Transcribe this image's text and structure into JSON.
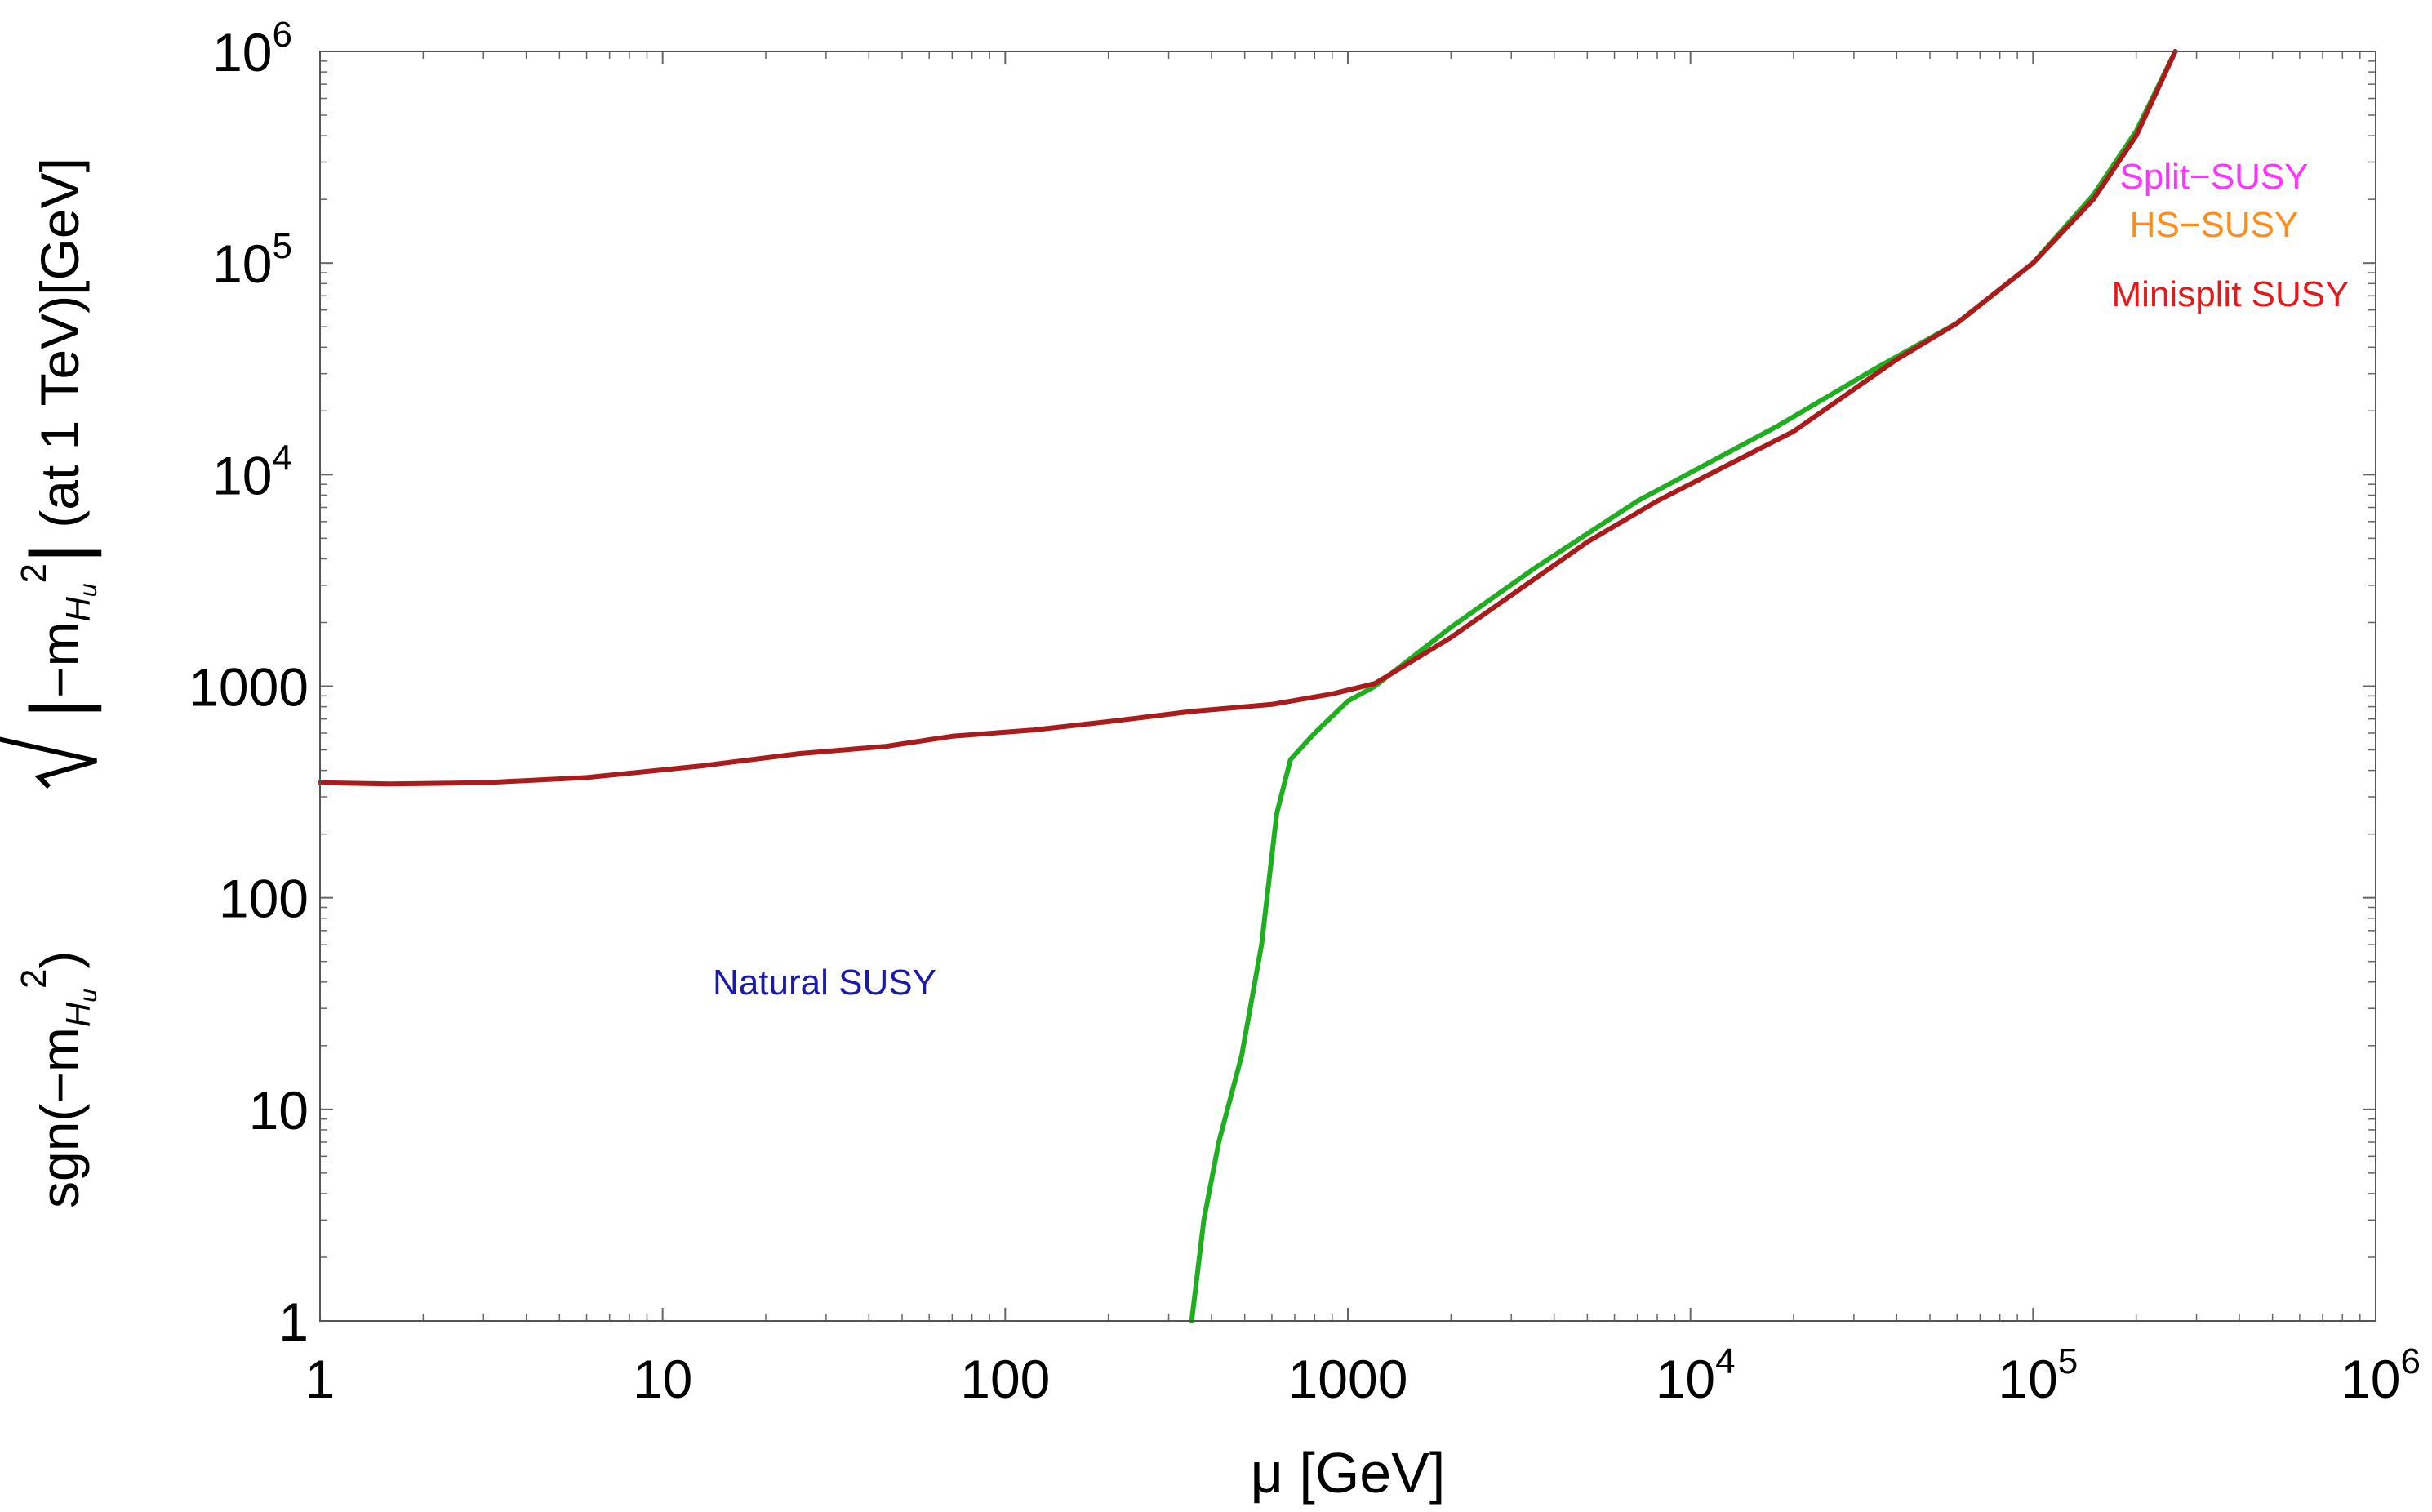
{
  "chart_data": {
    "type": "line",
    "xscale": "log",
    "yscale": "log",
    "xlim": [
      1,
      1000000
    ],
    "ylim": [
      1,
      1000000
    ],
    "xlabel": "μ [GeV]",
    "ylabel": {
      "prefix": "sgn(−m",
      "sub": "H",
      "subsub": "u",
      "sup": "2",
      "mid": ") ",
      "rad_inner_prefix": "−m",
      "suffix": " (at 1 TeV)[GeV]"
    },
    "x_ticks": [
      {
        "value": 1,
        "label": "1"
      },
      {
        "value": 10,
        "label": "10"
      },
      {
        "value": 100,
        "label": "100"
      },
      {
        "value": 1000,
        "label": "1000"
      },
      {
        "value": 10000,
        "base": "10",
        "exp": "4"
      },
      {
        "value": 100000,
        "base": "10",
        "exp": "5"
      },
      {
        "value": 1000000,
        "base": "10",
        "exp": "6"
      }
    ],
    "y_ticks": [
      {
        "value": 1,
        "label": "1"
      },
      {
        "value": 10,
        "label": "10"
      },
      {
        "value": 100,
        "label": "100"
      },
      {
        "value": 1000,
        "label": "1000"
      },
      {
        "value": 10000,
        "base": "10",
        "exp": "4"
      },
      {
        "value": 100000,
        "base": "10",
        "exp": "5"
      },
      {
        "value": 1000000,
        "base": "10",
        "exp": "6"
      }
    ],
    "series": [
      {
        "name": "green",
        "color": "#1fae1f",
        "x": [
          350,
          380,
          420,
          490,
          560,
          620,
          680,
          800,
          1000,
          1200,
          2000,
          3500,
          7000,
          18000,
          35000,
          60000,
          100000,
          150000,
          200000,
          260000
        ],
        "y": [
          1,
          3,
          7,
          18,
          60,
          250,
          450,
          600,
          850,
          1000,
          1900,
          3600,
          7500,
          17000,
          32000,
          52000,
          100000,
          210000,
          420000,
          1000000
        ]
      },
      {
        "name": "dark red",
        "color": "#aa1b1b",
        "x": [
          1,
          1.6,
          3,
          6,
          13,
          25,
          45,
          70,
          120,
          200,
          350,
          600,
          900,
          1200,
          2000,
          5000,
          8000,
          20000,
          40000,
          60000,
          100000,
          150000,
          200000,
          260000
        ],
        "y": [
          350,
          345,
          350,
          370,
          420,
          480,
          520,
          580,
          620,
          680,
          760,
          820,
          920,
          1030,
          1700,
          4800,
          7500,
          16000,
          35000,
          52000,
          100000,
          200000,
          400000,
          1000000
        ]
      }
    ],
    "annotations": [
      {
        "text": "Natural SUSY",
        "color": "#1a1aa8"
      },
      {
        "text": "Split−SUSY",
        "color": "#ff33ff"
      },
      {
        "text": "HS−SUSY",
        "color": "#ff8c1a"
      },
      {
        "text": "Minisplit SUSY",
        "color": "#e31a1c"
      }
    ]
  }
}
